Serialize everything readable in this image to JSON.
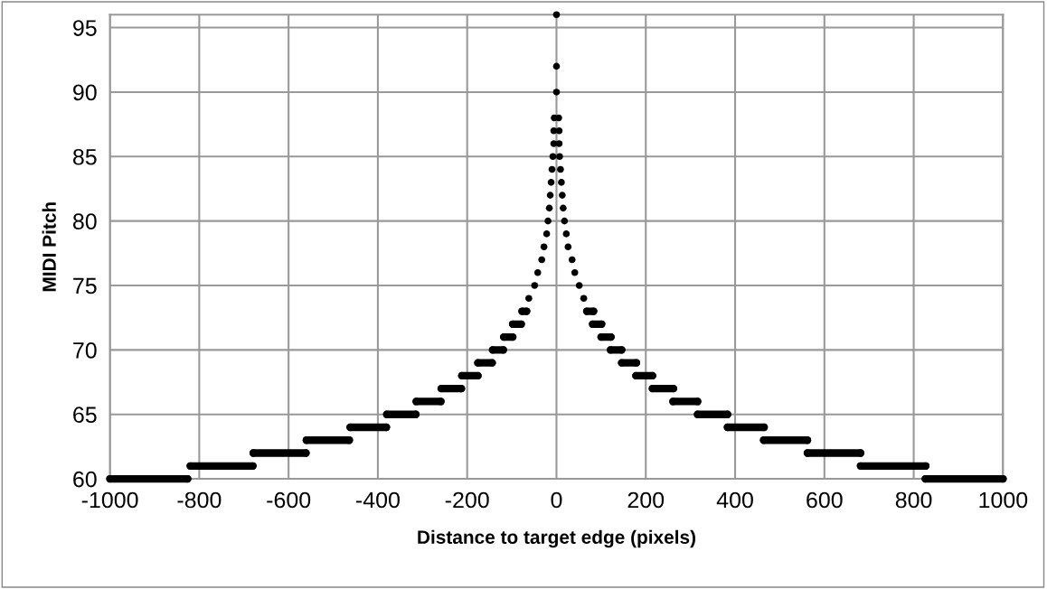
{
  "chart_data": {
    "type": "line",
    "xlabel": "Distance to target edge (pixels)",
    "ylabel": "MIDI Pitch",
    "series": [
      {
        "color": "#000000",
        "x": [
          -1000,
          -826
        ],
        "values": [
          60,
          60
        ]
      },
      {
        "color": "#000000",
        "x": [
          -820,
          -680
        ],
        "values": [
          61,
          61
        ]
      },
      {
        "color": "#000000",
        "x": [
          -679,
          -561
        ],
        "values": [
          62,
          62
        ]
      },
      {
        "color": "#000000",
        "x": [
          -560,
          -464
        ],
        "values": [
          63,
          63
        ]
      },
      {
        "color": "#000000",
        "x": [
          -462,
          -381
        ],
        "values": [
          64,
          64
        ]
      },
      {
        "color": "#000000",
        "x": [
          -380,
          -315
        ],
        "values": [
          65,
          65
        ]
      },
      {
        "color": "#000000",
        "x": [
          -314,
          -259
        ],
        "values": [
          66,
          66
        ]
      },
      {
        "color": "#000000",
        "x": [
          -258,
          -213
        ],
        "values": [
          67,
          67
        ]
      },
      {
        "color": "#000000",
        "x": [
          -212,
          -176
        ],
        "values": [
          68,
          68
        ]
      },
      {
        "color": "#000000",
        "x": [
          -176,
          -144
        ],
        "values": [
          69,
          69
        ]
      },
      {
        "color": "#000000",
        "x": [
          -143,
          -119
        ],
        "values": [
          70,
          70
        ]
      },
      {
        "color": "#000000",
        "x": [
          -118,
          -98
        ],
        "values": [
          71,
          71
        ]
      },
      {
        "color": "#000000",
        "x": [
          -98,
          -79
        ],
        "values": [
          72,
          72
        ]
      },
      {
        "color": "#000000",
        "x": [
          -77,
          -67
        ],
        "values": [
          73,
          73
        ]
      },
      {
        "type": "scatter",
        "color": "#000000",
        "x": [
          -62,
          -49,
          -42,
          -33,
          -28,
          -22,
          -19,
          -16,
          -14,
          -12,
          -10,
          -8,
          -6,
          -6,
          -5,
          0,
          0,
          0,
          5,
          6,
          6,
          7,
          9,
          11,
          13,
          15,
          18,
          22,
          26,
          35,
          41,
          51,
          61
        ],
        "values": [
          74,
          75,
          76,
          77,
          78,
          79,
          80,
          81,
          82,
          83,
          84,
          85,
          86,
          87,
          88,
          90,
          92,
          96,
          88,
          87,
          86,
          85,
          84,
          83,
          82,
          81,
          80,
          79,
          78,
          77,
          76,
          75,
          74
        ]
      },
      {
        "color": "#000000",
        "x": [
          68,
          83
        ],
        "values": [
          73,
          73
        ]
      },
      {
        "color": "#000000",
        "x": [
          81,
          101
        ],
        "values": [
          72,
          72
        ]
      },
      {
        "color": "#000000",
        "x": [
          100,
          122
        ],
        "values": [
          71,
          71
        ]
      },
      {
        "color": "#000000",
        "x": [
          121,
          146
        ],
        "values": [
          70,
          70
        ]
      },
      {
        "color": "#000000",
        "x": [
          146,
          179
        ],
        "values": [
          69,
          69
        ]
      },
      {
        "color": "#000000",
        "x": [
          178,
          215
        ],
        "values": [
          68,
          68
        ]
      },
      {
        "color": "#000000",
        "x": [
          215,
          262
        ],
        "values": [
          67,
          67
        ]
      },
      {
        "color": "#000000",
        "x": [
          261,
          316
        ],
        "values": [
          66,
          66
        ]
      },
      {
        "color": "#000000",
        "x": [
          316,
          383
        ],
        "values": [
          65,
          65
        ]
      },
      {
        "color": "#000000",
        "x": [
          383,
          465
        ],
        "values": [
          64,
          64
        ]
      },
      {
        "color": "#000000",
        "x": [
          464,
          562
        ],
        "values": [
          63,
          63
        ]
      },
      {
        "color": "#000000",
        "x": [
          562,
          681
        ],
        "values": [
          62,
          62
        ]
      },
      {
        "color": "#000000",
        "x": [
          681,
          827
        ],
        "values": [
          61,
          61
        ]
      },
      {
        "color": "#000000",
        "x": [
          826,
          1000
        ],
        "values": [
          60,
          60
        ]
      }
    ],
    "xlim": [
      -1000,
      1000
    ],
    "xticks": [
      -1000,
      -800,
      -600,
      -400,
      -200,
      0,
      200,
      400,
      600,
      800,
      1000
    ],
    "ylim": [
      60,
      96
    ],
    "yticks": [
      60,
      65,
      70,
      75,
      80,
      85,
      90,
      95
    ],
    "grid": true,
    "marker": "circle",
    "line_style": "solid"
  }
}
